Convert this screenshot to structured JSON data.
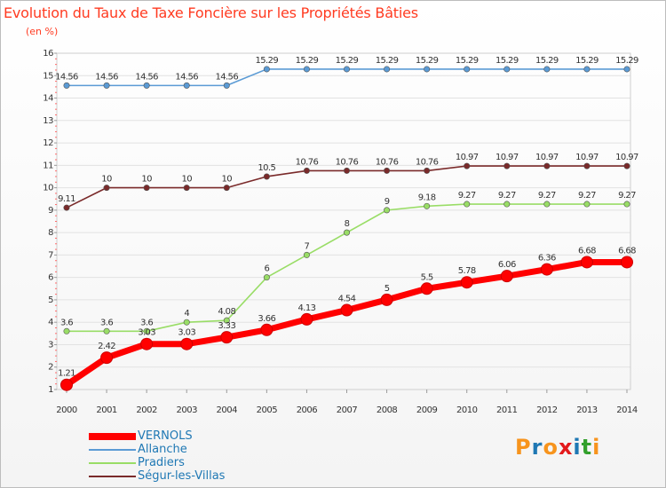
{
  "title": "Evolution du Taux de Taxe Foncière sur les Propriétés Bâties",
  "unit": "(en %)",
  "logo": {
    "text": "Proxiti",
    "letters": [
      {
        "ch": "P",
        "color": "#f7941d"
      },
      {
        "ch": "r",
        "color": "#1f78b4"
      },
      {
        "ch": "o",
        "color": "#f7941d"
      },
      {
        "ch": "x",
        "color": "#e31a1c"
      },
      {
        "ch": "i",
        "color": "#1f78b4"
      },
      {
        "ch": "t",
        "color": "#33a02c"
      },
      {
        "ch": "i",
        "color": "#f7941d"
      }
    ]
  },
  "chart_data": {
    "type": "line",
    "title": "Evolution du Taux de Taxe Foncière sur les Propriétés Bâties",
    "ylabel": "(en %)",
    "xlabel": "",
    "ylim": [
      1,
      16
    ],
    "yticks": [
      1,
      2,
      3,
      4,
      5,
      6,
      7,
      8,
      9,
      10,
      11,
      12,
      13,
      14,
      15,
      16
    ],
    "grid": true,
    "legend": "bottom-left",
    "categories": [
      "2000",
      "2001",
      "2002",
      "2003",
      "2004",
      "2005",
      "2006",
      "2007",
      "2008",
      "2009",
      "2010",
      "2011",
      "2012",
      "2013",
      "2014"
    ],
    "series": [
      {
        "name": "VERNOLS",
        "color": "#ff0000",
        "values": [
          1.21,
          2.42,
          3.03,
          3.03,
          3.33,
          3.66,
          4.13,
          4.54,
          5,
          5.5,
          5.78,
          6.06,
          6.36,
          6.68,
          6.68
        ],
        "labels": [
          "1.21",
          "2.42",
          "3.03",
          "3.03",
          "3.33",
          "3.66",
          "4.13",
          "4.54",
          "5",
          "5.5",
          "5.78",
          "6.06",
          "6.36",
          "6.68",
          "6.68"
        ]
      },
      {
        "name": "Allanche",
        "color": "#5b9bd5",
        "values": [
          14.56,
          14.56,
          14.56,
          14.56,
          14.56,
          15.29,
          15.29,
          15.29,
          15.29,
          15.29,
          15.29,
          15.29,
          15.29,
          15.29,
          15.29
        ],
        "labels": [
          "14.56",
          "14.56",
          "14.56",
          "14.56",
          "14.56",
          "15.29",
          "15.29",
          "15.29",
          "15.29",
          "15.29",
          "15.29",
          "15.29",
          "15.29",
          "15.29",
          "15.29"
        ]
      },
      {
        "name": "Pradiers",
        "color": "#99dd66",
        "values": [
          3.6,
          3.6,
          3.6,
          4,
          4.08,
          6,
          7,
          8,
          9,
          9.18,
          9.27,
          9.27,
          9.27,
          9.27,
          9.27
        ],
        "labels": [
          "3.6",
          "3.6",
          "3.6",
          "4",
          "4.08",
          "6",
          "7",
          "8",
          "9",
          "9.18",
          "9.27",
          "9.27",
          "9.27",
          "9.27",
          "9.27"
        ]
      },
      {
        "name": "Ségur-les-Villas",
        "color": "#7a2a2a",
        "values": [
          9.11,
          10,
          10,
          10,
          10,
          10.5,
          10.76,
          10.76,
          10.76,
          10.76,
          10.97,
          10.97,
          10.97,
          10.97,
          10.97
        ],
        "labels": [
          "9.11",
          "10",
          "10",
          "10",
          "10",
          "10.5",
          "10.76",
          "10.76",
          "10.76",
          "10.76",
          "10.97",
          "10.97",
          "10.97",
          "10.97",
          "10.97"
        ]
      }
    ]
  }
}
